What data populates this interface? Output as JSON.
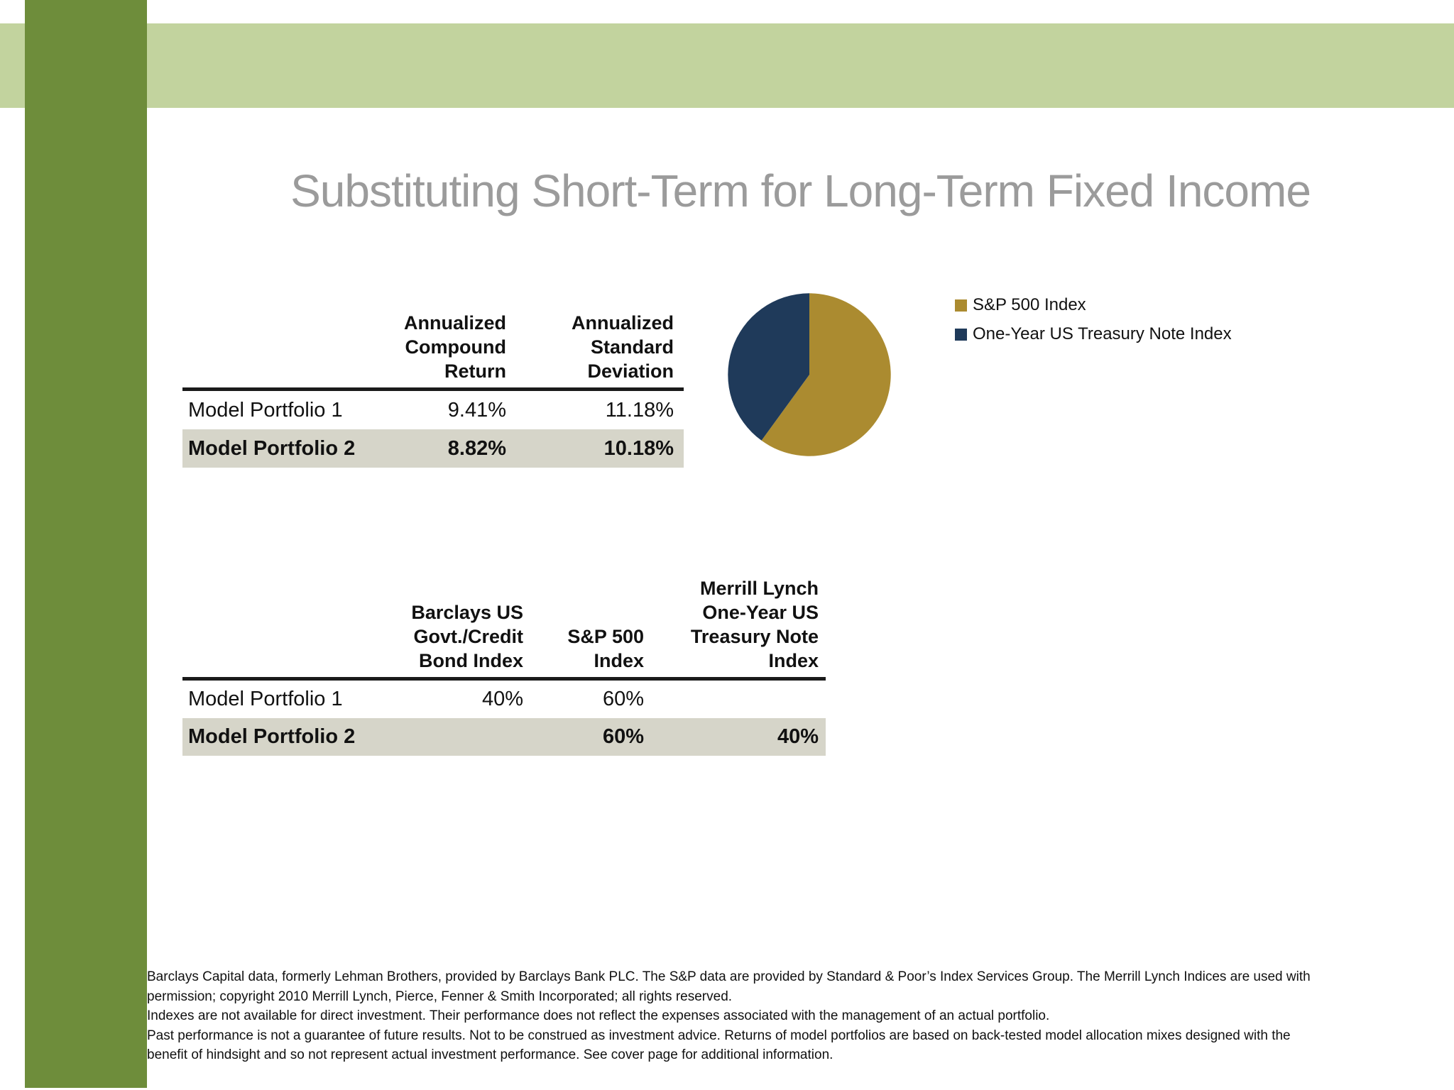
{
  "slide": {
    "title": "Substituting Short-Term for Long-Term Fixed Income"
  },
  "colors": {
    "side_bar_green": "#6e8d3b",
    "top_band_green": "#c2d39e",
    "highlight_row": "#d6d5c9",
    "title_gray": "#9b9b9b",
    "gold": "#ab8b30",
    "navy": "#1f3a5a"
  },
  "performance_table": {
    "columns": [
      "",
      "Annualized\nCompound\nReturn",
      "Annualized\nStandard\nDeviation"
    ],
    "rows": [
      {
        "name": "Model Portfolio 1",
        "compound_return": "9.41%",
        "std_dev": "11.18%"
      },
      {
        "name": "Model Portfolio 2",
        "compound_return": "8.82%",
        "std_dev": "10.18%"
      }
    ]
  },
  "allocation_table": {
    "columns": [
      "",
      "Barclays US\nGovt./Credit\nBond Index",
      "S&P 500\nIndex",
      "Merrill Lynch\nOne-Year US\nTreasury Note\nIndex"
    ],
    "rows": [
      {
        "name": "Model Portfolio 1",
        "barclays": "40%",
        "sp500": "60%",
        "ml_treasury": ""
      },
      {
        "name": "Model Portfolio 2",
        "barclays": "",
        "sp500": "60%",
        "ml_treasury": "40%"
      }
    ]
  },
  "pie_legend": [
    {
      "label": "S&P 500 Index",
      "color": "#ab8b30"
    },
    {
      "label": "One-Year US Treasury Note Index",
      "color": "#1f3a5a"
    }
  ],
  "chart_data": {
    "type": "pie",
    "labels": [
      "S&P 500 Index",
      "One-Year US Treasury Note Index"
    ],
    "values": [
      60,
      40
    ],
    "colors": [
      "#ab8b30",
      "#1f3a5a"
    ],
    "title": "",
    "legend_position": "right",
    "start_angle_deg": 0,
    "direction": "clockwise"
  },
  "footnote": {
    "text": "Barclays Capital data, formerly Lehman Brothers, provided by Barclays Bank PLC. The S&P data are provided by Standard & Poor’s Index Services Group. The Merrill Lynch Indices are used with\npermission; copyright 2010 Merrill Lynch, Pierce, Fenner & Smith Incorporated; all rights reserved.\nIndexes are not available for direct investment. Their performance does not reflect the expenses associated with the management of an actual portfolio.\nPast performance is not a guarantee of future results. Not to be construed as investment advice. Returns of model portfolios are based on back-tested model allocation mixes designed with the\nbenefit of hindsight and so not represent actual investment performance. See cover page for additional information."
  }
}
